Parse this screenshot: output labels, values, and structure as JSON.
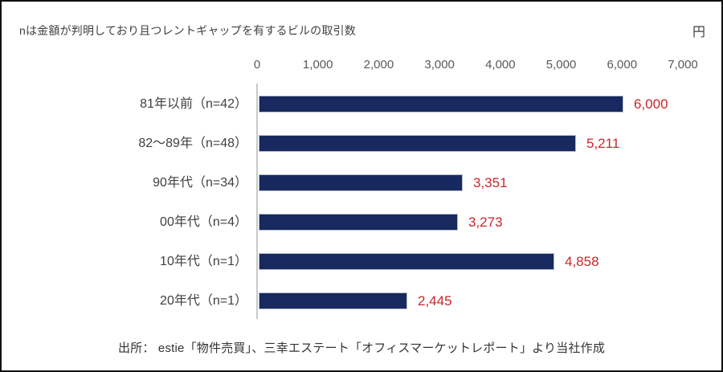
{
  "note": "nは金額が判明しており且つレントギャップを有するビルの取引数",
  "unit_label": "円",
  "source": "出所： estie「物件売買」、三幸エステート「オフィスマーケットレポート」より当社作成",
  "colors": {
    "bar": "#17295E",
    "bar_edge": "#b7bdc9",
    "value_label": "#C9262C",
    "axis_line": "#C9C9C9",
    "tick_text": "#595959",
    "category_text": "#404040",
    "frame_border": "#111111",
    "background": "#FFFFFF"
  },
  "chart_data": {
    "type": "bar",
    "orientation": "horizontal",
    "title": "nは金額が判明しており且つレントギャップを有するビルの取引数",
    "unit": "円",
    "categories": [
      "81年以前（n=42）",
      "82～89年（n=48）",
      "90年代（n=34）",
      "00年代（n=4）",
      "10年代（n=1）",
      "20年代（n=1）"
    ],
    "values": [
      6000,
      5211,
      3351,
      3273,
      4858,
      2445
    ],
    "value_labels": [
      "6,000",
      "5,211",
      "3,351",
      "3,273",
      "4,858",
      "2,445"
    ],
    "xlim": [
      0,
      7000
    ],
    "x_ticks": [
      "0",
      "1,000",
      "2,000",
      "3,000",
      "4,000",
      "5,000",
      "6,000",
      "7,000"
    ],
    "x_tick_values": [
      0,
      1000,
      2000,
      3000,
      4000,
      5000,
      6000,
      7000
    ],
    "axis_position": "top",
    "grid": false,
    "legend": "none",
    "source": "出所： estie「物件売買」、三幸エステート「オフィスマーケットレポート」より当社作成"
  }
}
